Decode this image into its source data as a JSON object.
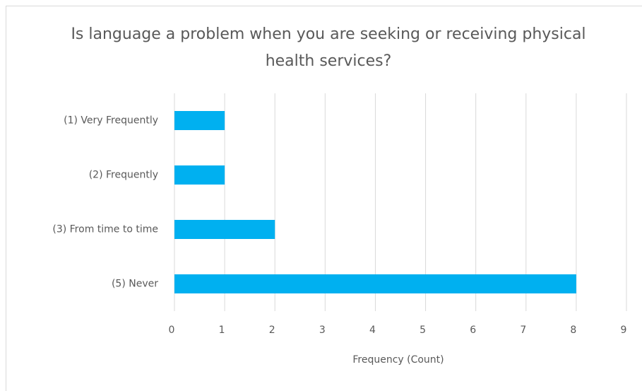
{
  "chart_data": {
    "type": "hbar",
    "title": "Is language a problem when you are seeking or receiving physical health services?",
    "x_label": "Frequency (Count)",
    "categories": [
      "(1) Very Frequently",
      "(2) Frequently",
      "(3) From time to time",
      "(5) Never"
    ],
    "values": [
      1,
      1,
      2,
      8
    ],
    "color": "#00b0f0",
    "xlim": [
      0,
      9
    ],
    "xticks": [
      0,
      1,
      2,
      3,
      4,
      5,
      6,
      7,
      8,
      9
    ],
    "grid": true
  }
}
